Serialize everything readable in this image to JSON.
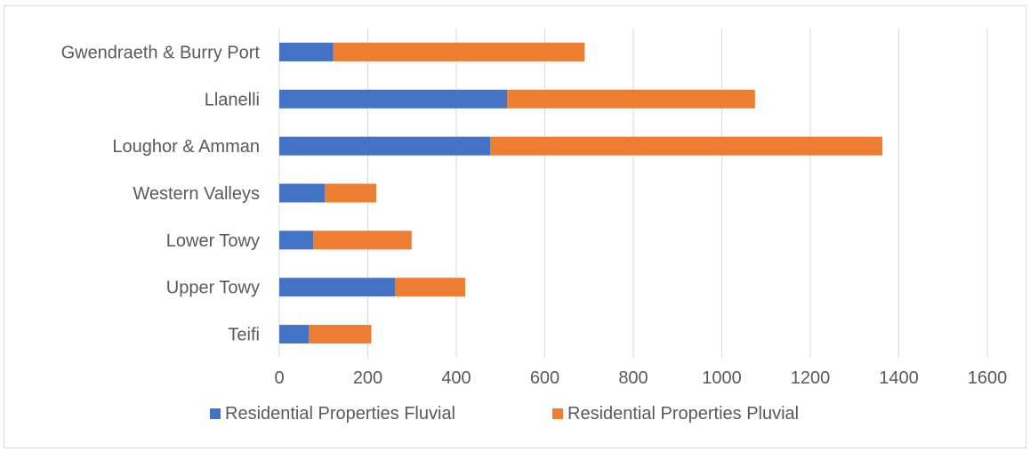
{
  "chart_data": {
    "type": "bar",
    "orientation": "horizontal",
    "stacked": true,
    "categories": [
      "Gwendraeth & Burry Port",
      "Llanelli",
      "Loughor & Amman",
      "Western Valleys",
      "Lower Towy",
      "Upper Towy",
      "Teifi"
    ],
    "series": [
      {
        "name": "Residential Properties Fluvial",
        "color": "#4472c4",
        "values": [
          122,
          515,
          477,
          103,
          77,
          262,
          67
        ]
      },
      {
        "name": "Residential Properties Pluvial",
        "color": "#ed7d31",
        "values": [
          568,
          560,
          886,
          116,
          222,
          158,
          141
        ]
      }
    ],
    "xlim": [
      0,
      1600
    ],
    "xticks": [
      0,
      200,
      400,
      600,
      800,
      1000,
      1200,
      1400,
      1600
    ],
    "grid": "vertical",
    "legend_position": "bottom",
    "title": "",
    "xlabel": "",
    "ylabel": ""
  }
}
